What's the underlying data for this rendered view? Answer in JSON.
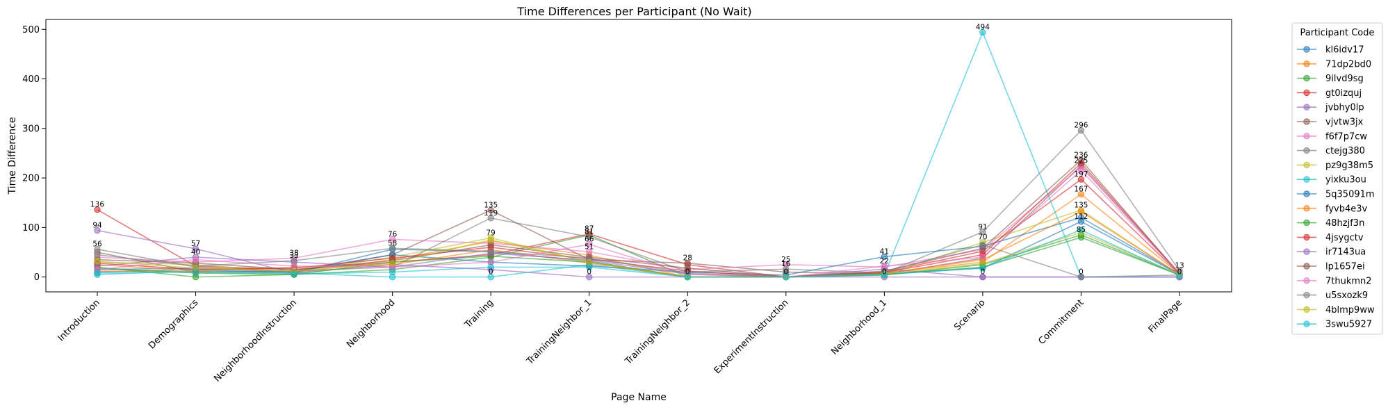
{
  "chart_data": {
    "type": "line",
    "title": "Time Differences per Participant (No Wait)",
    "xlabel": "Page Name",
    "ylabel": "Time Difference",
    "ylim": [
      -30,
      520
    ],
    "yticks": [
      0,
      100,
      200,
      300,
      400,
      500
    ],
    "grid": false,
    "legend_title": "Participant Code",
    "legend_position": "outside-right",
    "categories": [
      "Introduction",
      "Demographics",
      "NeighborhoodInstruction",
      "Neighborhood",
      "Training",
      "TrainingNeighbor_1",
      "TrainingNeighbor_2",
      "ExperimentInstruction",
      "Neighborhood_1",
      "Scenario",
      "Commitment",
      "FinalPage"
    ],
    "series": [
      {
        "name": "kl6idv17",
        "color": "#1f77b4",
        "values": [
          10,
          15,
          8,
          56,
          51,
          32,
          0,
          0,
          6,
          18,
          112,
          5
        ]
      },
      {
        "name": "71dp2bd0",
        "color": "#ff7f0e",
        "values": [
          12,
          11,
          8,
          35,
          72,
          44,
          0,
          0,
          8,
          30,
          167,
          6
        ]
      },
      {
        "name": "9ilvd9sg",
        "color": "#2ca02c",
        "values": [
          20,
          0,
          5,
          15,
          40,
          85,
          0,
          0,
          4,
          25,
          85,
          4
        ]
      },
      {
        "name": "gt0izquj",
        "color": "#d62728",
        "values": [
          136,
          22,
          15,
          30,
          45,
          87,
          25,
          0,
          10,
          52,
          197,
          6
        ]
      },
      {
        "name": "jvbhy0lp",
        "color": "#9467bd",
        "values": [
          94,
          57,
          8,
          25,
          15,
          0,
          0,
          0,
          0,
          0,
          0,
          0
        ]
      },
      {
        "name": "vjvtw3jx",
        "color": "#8c564b",
        "values": [
          50,
          10,
          12,
          45,
          135,
          35,
          28,
          10,
          6,
          38,
          225,
          6
        ]
      },
      {
        "name": "f6f7p7cw",
        "color": "#e377c2",
        "values": [
          40,
          30,
          38,
          76,
          68,
          51,
          15,
          25,
          20,
          55,
          222,
          8
        ]
      },
      {
        "name": "ctejg380",
        "color": "#7f7f7f",
        "values": [
          56,
          20,
          12,
          20,
          119,
          81,
          10,
          16,
          8,
          91,
          296,
          13
        ]
      },
      {
        "name": "pz9g38m5",
        "color": "#bcbd22",
        "values": [
          30,
          25,
          10,
          40,
          79,
          30,
          0,
          0,
          5,
          70,
          135,
          5
        ]
      },
      {
        "name": "yixku3ou",
        "color": "#17becf",
        "values": [
          5,
          12,
          8,
          0,
          0,
          25,
          0,
          0,
          4,
          494,
          0,
          0
        ]
      },
      {
        "name": "5q35091m",
        "color": "#1f77b4",
        "values": [
          15,
          18,
          10,
          45,
          30,
          22,
          10,
          4,
          41,
          62,
          120,
          6
        ]
      },
      {
        "name": "fyvb4e3v",
        "color": "#ff7f0e",
        "values": [
          25,
          12,
          20,
          25,
          55,
          28,
          0,
          0,
          7,
          35,
          132,
          5
        ]
      },
      {
        "name": "48hzjf3n",
        "color": "#2ca02c",
        "values": [
          18,
          8,
          5,
          30,
          42,
          30,
          0,
          0,
          5,
          20,
          80,
          4
        ]
      },
      {
        "name": "4jsygctv",
        "color": "#d62728",
        "values": [
          28,
          15,
          18,
          38,
          60,
          36,
          12,
          0,
          9,
          45,
          230,
          7
        ]
      },
      {
        "name": "ir7143ua",
        "color": "#9467bd",
        "values": [
          22,
          40,
          30,
          20,
          48,
          34,
          6,
          0,
          16,
          0,
          0,
          0
        ]
      },
      {
        "name": "lp1657ei",
        "color": "#8c564b",
        "values": [
          35,
          28,
          15,
          33,
          65,
          40,
          18,
          0,
          12,
          58,
          236,
          6
        ]
      },
      {
        "name": "7thukmn2",
        "color": "#e377c2",
        "values": [
          15,
          35,
          22,
          20,
          30,
          66,
          5,
          0,
          22,
          40,
          215,
          7
        ]
      },
      {
        "name": "u5sxozk9",
        "color": "#7f7f7f",
        "values": [
          45,
          22,
          33,
          58,
          52,
          38,
          8,
          0,
          10,
          65,
          0,
          4
        ]
      },
      {
        "name": "4blmp9ww",
        "color": "#bcbd22",
        "values": [
          32,
          18,
          12,
          28,
          75,
          30,
          0,
          0,
          6,
          27,
          90,
          5
        ]
      },
      {
        "name": "3swu5927",
        "color": "#17becf",
        "values": [
          8,
          10,
          6,
          10,
          20,
          20,
          0,
          0,
          5,
          18,
          95,
          3
        ]
      }
    ]
  },
  "annotations": [
    {
      "cat": "Introduction",
      "value": 136,
      "text": "136"
    },
    {
      "cat": "Introduction",
      "value": 94,
      "text": "94"
    },
    {
      "cat": "Introduction",
      "value": 56,
      "text": "56"
    },
    {
      "cat": "Demographics",
      "value": 57,
      "text": "57"
    },
    {
      "cat": "Demographics",
      "value": 40,
      "text": "40"
    },
    {
      "cat": "NeighborhoodInstruction",
      "value": 38,
      "text": "38"
    },
    {
      "cat": "NeighborhoodInstruction",
      "value": 33,
      "text": "33"
    },
    {
      "cat": "Neighborhood",
      "value": 76,
      "text": "76"
    },
    {
      "cat": "Neighborhood",
      "value": 58,
      "text": "58"
    },
    {
      "cat": "Training",
      "value": 135,
      "text": "135"
    },
    {
      "cat": "Training",
      "value": 119,
      "text": "119"
    },
    {
      "cat": "Training",
      "value": 79,
      "text": "79"
    },
    {
      "cat": "Training",
      "value": 0,
      "text": "0"
    },
    {
      "cat": "TrainingNeighbor_1",
      "value": 87,
      "text": "87"
    },
    {
      "cat": "TrainingNeighbor_1",
      "value": 81,
      "text": "81"
    },
    {
      "cat": "TrainingNeighbor_1",
      "value": 66,
      "text": "66"
    },
    {
      "cat": "TrainingNeighbor_1",
      "value": 51,
      "text": "51"
    },
    {
      "cat": "TrainingNeighbor_1",
      "value": 0,
      "text": "0"
    },
    {
      "cat": "TrainingNeighbor_2",
      "value": 28,
      "text": "28"
    },
    {
      "cat": "TrainingNeighbor_2",
      "value": 0,
      "text": "0"
    },
    {
      "cat": "ExperimentInstruction",
      "value": 25,
      "text": "25"
    },
    {
      "cat": "ExperimentInstruction",
      "value": 16,
      "text": "16"
    },
    {
      "cat": "ExperimentInstruction",
      "value": 0,
      "text": "0"
    },
    {
      "cat": "Neighborhood_1",
      "value": 41,
      "text": "41"
    },
    {
      "cat": "Neighborhood_1",
      "value": 22,
      "text": "22"
    },
    {
      "cat": "Neighborhood_1",
      "value": 0,
      "text": "0"
    },
    {
      "cat": "Scenario",
      "value": 494,
      "text": "494"
    },
    {
      "cat": "Scenario",
      "value": 91,
      "text": "91"
    },
    {
      "cat": "Scenario",
      "value": 70,
      "text": "70"
    },
    {
      "cat": "Scenario",
      "value": 0,
      "text": "0"
    },
    {
      "cat": "Commitment",
      "value": 296,
      "text": "296"
    },
    {
      "cat": "Commitment",
      "value": 236,
      "text": "236"
    },
    {
      "cat": "Commitment",
      "value": 225,
      "text": "225"
    },
    {
      "cat": "Commitment",
      "value": 197,
      "text": "197"
    },
    {
      "cat": "Commitment",
      "value": 167,
      "text": "167"
    },
    {
      "cat": "Commitment",
      "value": 135,
      "text": "135"
    },
    {
      "cat": "Commitment",
      "value": 112,
      "text": "112"
    },
    {
      "cat": "Commitment",
      "value": 85,
      "text": "85"
    },
    {
      "cat": "Commitment",
      "value": 0,
      "text": "0"
    },
    {
      "cat": "FinalPage",
      "value": 13,
      "text": "13"
    },
    {
      "cat": "FinalPage",
      "value": 0,
      "text": "0"
    }
  ]
}
